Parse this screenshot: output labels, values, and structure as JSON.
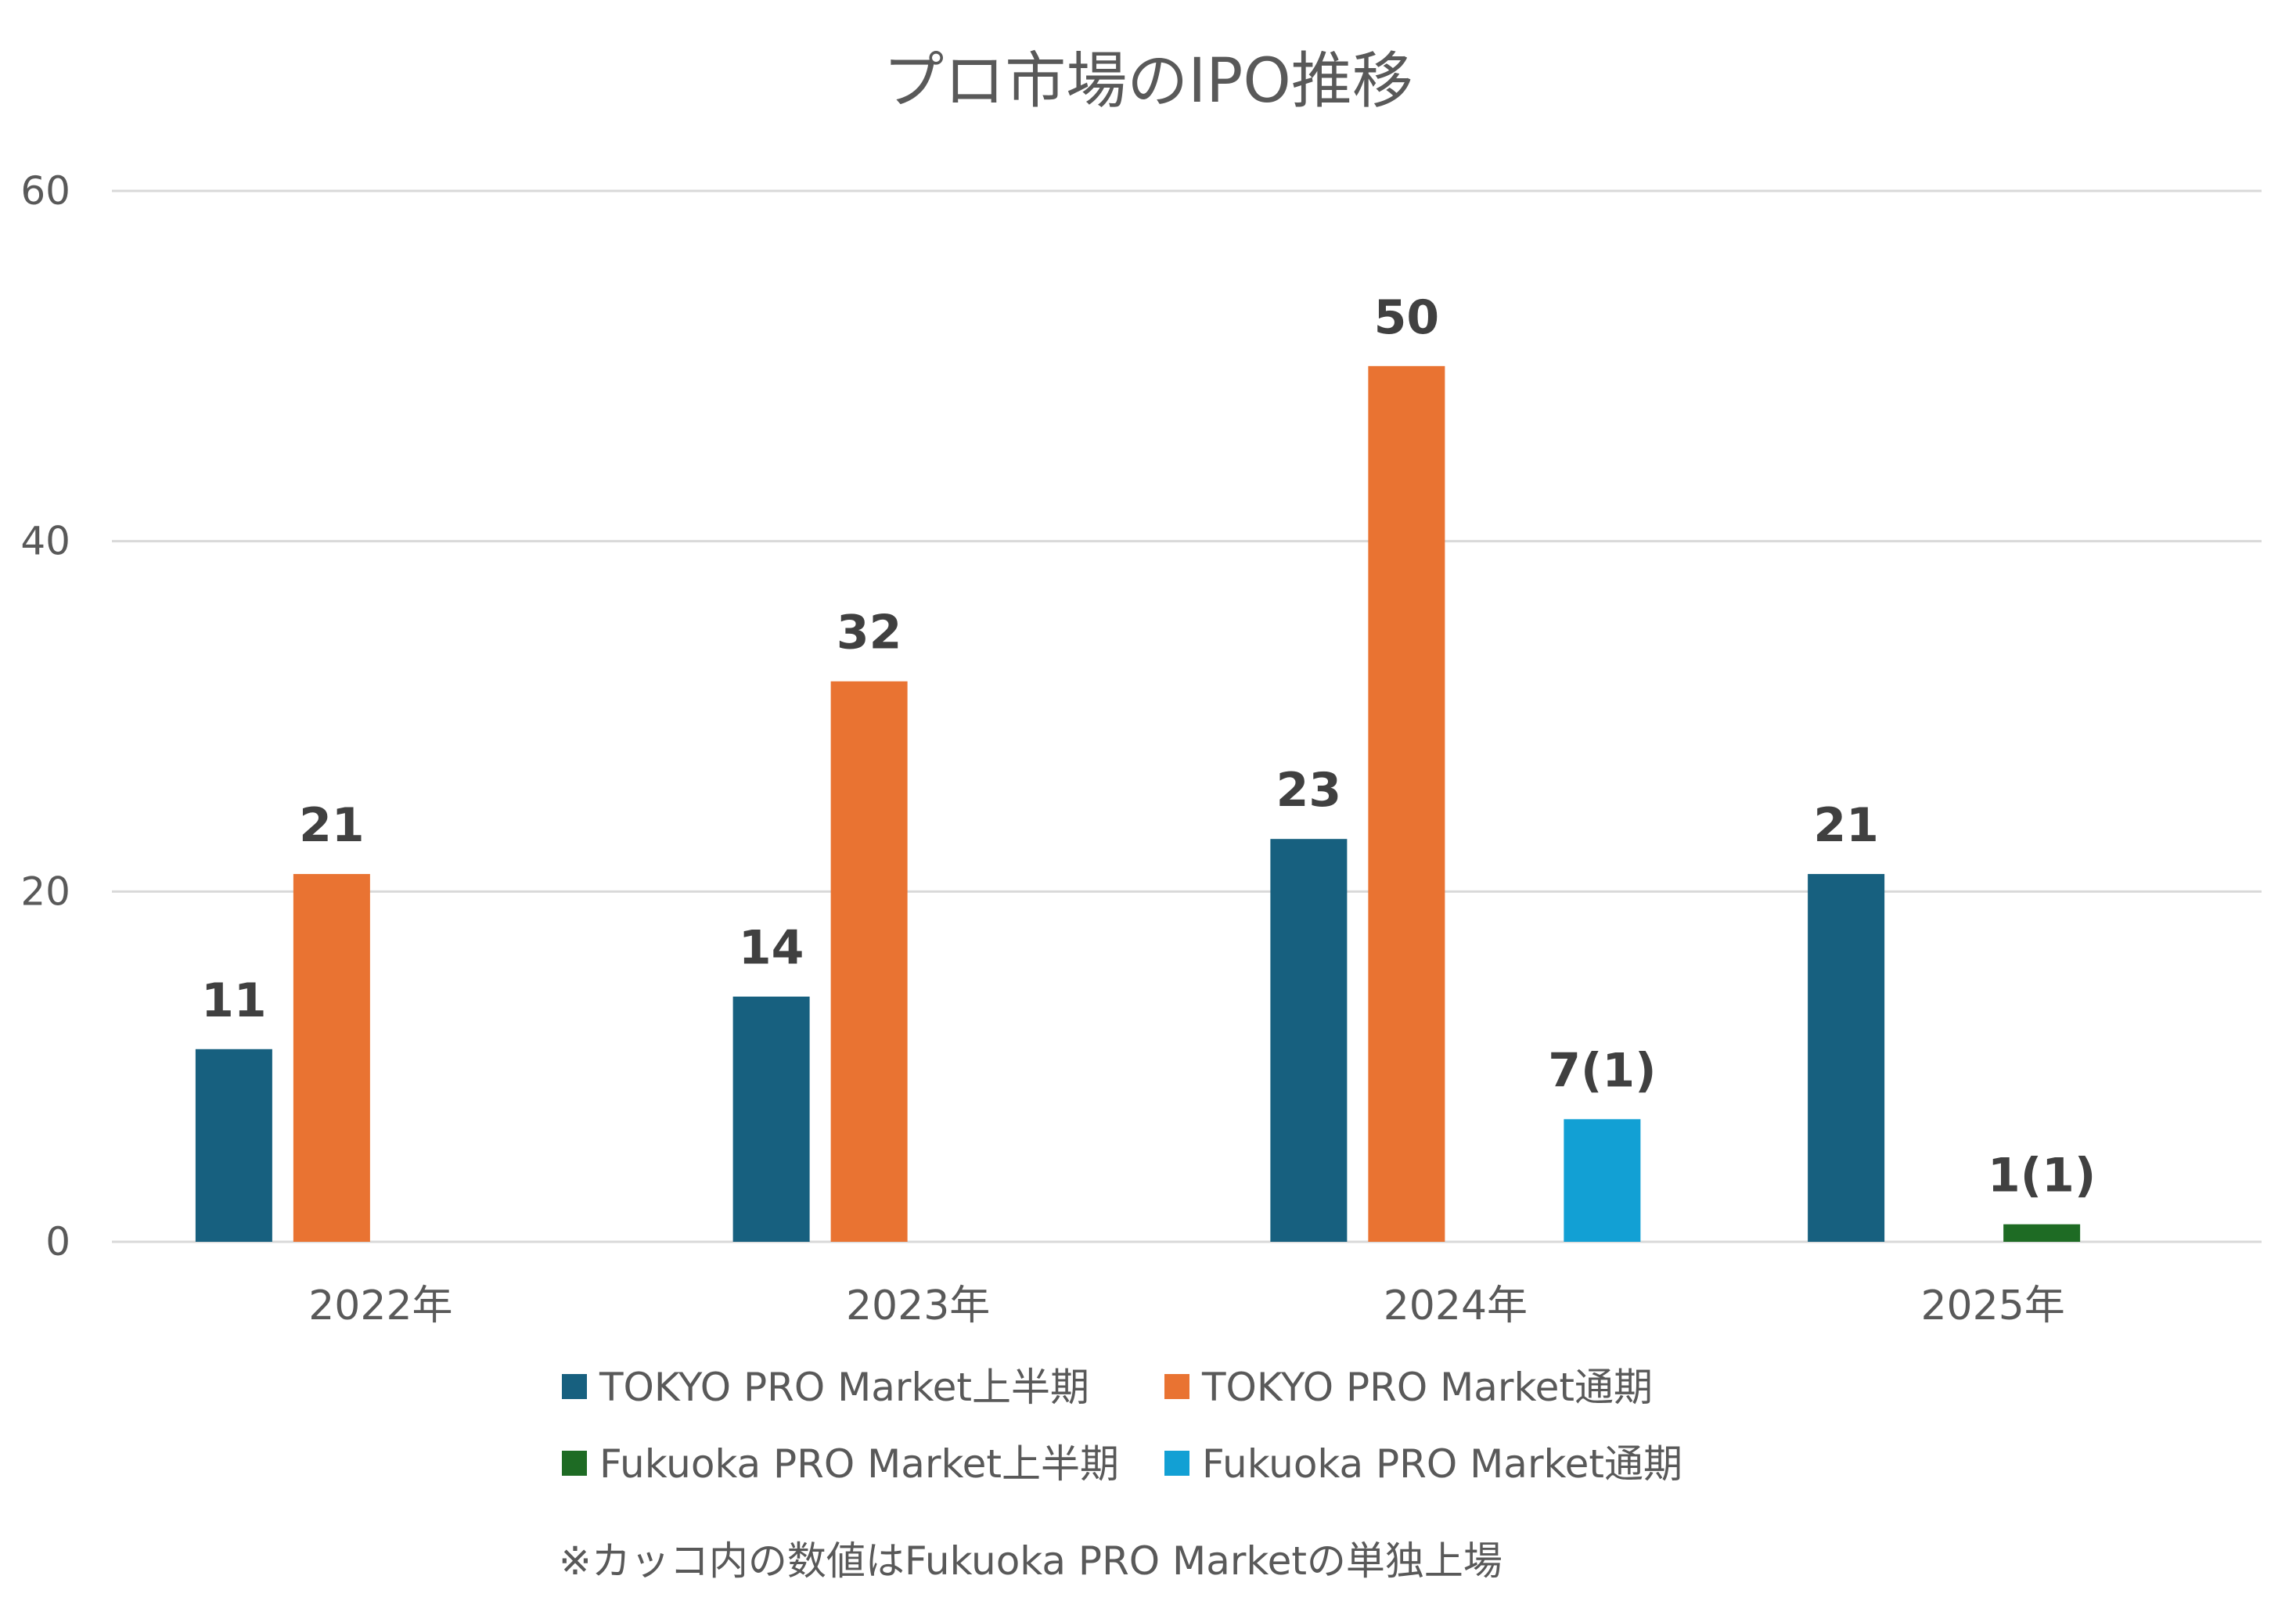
{
  "chart_data": {
    "type": "bar",
    "title": "プロ市場のIPO推移",
    "categories": [
      "2022年",
      "2023年",
      "2024年",
      "2025年"
    ],
    "ylim": [
      0,
      60
    ],
    "yticks": [
      0,
      20,
      40,
      60
    ],
    "grid": true,
    "legend_position": "bottom",
    "series": [
      {
        "name": "TOKYO PRO Market上半期",
        "color": "#17607f",
        "values": [
          11,
          14,
          23,
          21
        ],
        "labels": [
          "11",
          "14",
          "23",
          "21"
        ]
      },
      {
        "name": "TOKYO PRO Market通期",
        "color": "#e97332",
        "values": [
          21,
          32,
          50,
          null
        ],
        "labels": [
          "21",
          "32",
          "50",
          null
        ]
      },
      {
        "name": "Fukuoka PRO Market上半期",
        "color": "#1e6b24",
        "values": [
          null,
          null,
          null,
          1
        ],
        "labels": [
          null,
          null,
          null,
          "1(1)"
        ]
      },
      {
        "name": "Fukuoka PRO Market通期",
        "color": "#12a0d4",
        "values": [
          null,
          null,
          7,
          null
        ],
        "labels": [
          null,
          null,
          "7(1)",
          null
        ]
      }
    ],
    "note": "※カッコ内の数値はFukuoka PRO Marketの単独上場"
  }
}
